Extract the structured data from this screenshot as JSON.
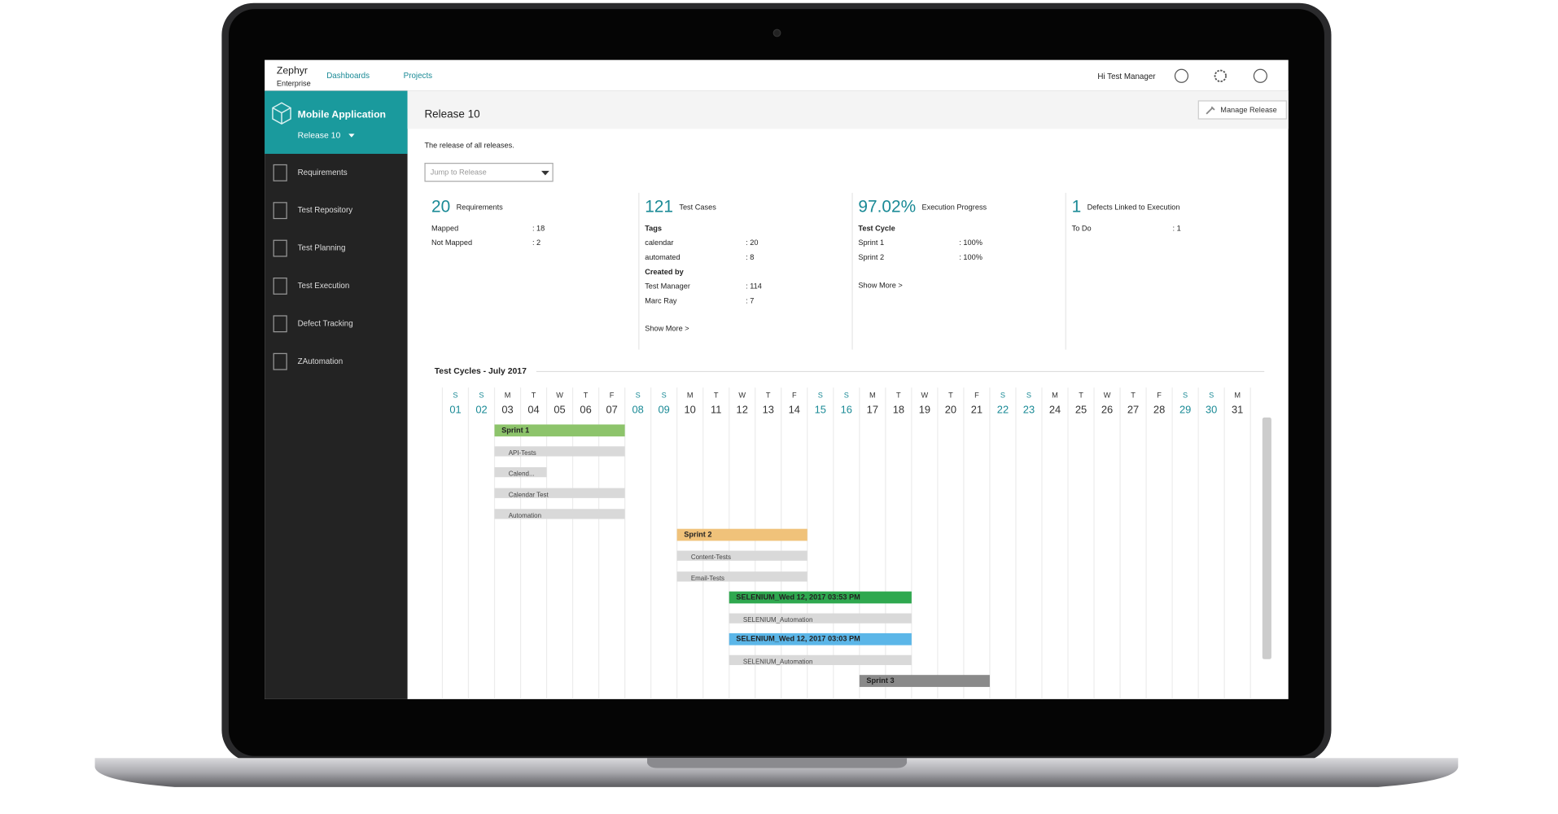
{
  "app": {
    "brand": "Zephyr",
    "brand_sub": "Enterprise",
    "nav": [
      "Dashboards",
      "Projects"
    ],
    "greeting": "Hi Test Manager"
  },
  "sidebar": {
    "project": "Mobile Application",
    "release": "Release 10",
    "items": [
      "Requirements",
      "Test Repository",
      "Test Planning",
      "Test Execution",
      "Defect Tracking",
      "ZAutomation"
    ]
  },
  "page": {
    "title": "Release 10",
    "action": "Manage Release",
    "description": "The release of all releases.",
    "jump_placeholder": "Jump to Release"
  },
  "cards": [
    {
      "value": "20",
      "label": "Requirements",
      "groups": [
        {
          "rows": [
            {
              "label": "Mapped",
              "value": ": 18"
            },
            {
              "label": "Not Mapped",
              "value": ": 2"
            }
          ]
        }
      ]
    },
    {
      "value": "121",
      "label": "Test Cases",
      "groups": [
        {
          "heading": "Tags",
          "rows": [
            {
              "label": "calendar",
              "value": ": 20"
            },
            {
              "label": "automated",
              "value": ": 8"
            }
          ]
        },
        {
          "heading": "Created by",
          "rows": [
            {
              "label": "Test Manager",
              "value": ": 114"
            },
            {
              "label": "Marc Ray",
              "value": ": 7"
            }
          ]
        }
      ],
      "link": "Show More >"
    },
    {
      "value": "97.02%",
      "label": "Execution Progress",
      "groups": [
        {
          "heading": "Test Cycle",
          "rows": [
            {
              "label": "Sprint 1",
              "value": ": 100%"
            },
            {
              "label": "Sprint 2",
              "value": ": 100%"
            }
          ]
        }
      ],
      "link": "Show More >"
    },
    {
      "value": "1",
      "label": "Defects Linked to Execution",
      "groups": [
        {
          "rows": [
            {
              "label": "To Do",
              "value": ": 1"
            }
          ]
        }
      ]
    }
  ],
  "gantt": {
    "title": "Test Cycles -  July 2017",
    "days": [
      {
        "dow": "S",
        "date": "01",
        "color": "#1a8a96"
      },
      {
        "dow": "S",
        "date": "02",
        "color": "#1a8a96"
      },
      {
        "dow": "M",
        "date": "03"
      },
      {
        "dow": "T",
        "date": "04"
      },
      {
        "dow": "W",
        "date": "05"
      },
      {
        "dow": "T",
        "date": "06"
      },
      {
        "dow": "F",
        "date": "07"
      },
      {
        "dow": "S",
        "date": "08",
        "color": "#1a8a96"
      },
      {
        "dow": "S",
        "date": "09",
        "color": "#1a8a96"
      },
      {
        "dow": "M",
        "date": "10"
      },
      {
        "dow": "T",
        "date": "11"
      },
      {
        "dow": "W",
        "date": "12"
      },
      {
        "dow": "T",
        "date": "13"
      },
      {
        "dow": "F",
        "date": "14"
      },
      {
        "dow": "S",
        "date": "15",
        "color": "#1a8a96"
      },
      {
        "dow": "S",
        "date": "16",
        "color": "#1a8a96"
      },
      {
        "dow": "M",
        "date": "17"
      },
      {
        "dow": "T",
        "date": "18"
      },
      {
        "dow": "W",
        "date": "19"
      },
      {
        "dow": "T",
        "date": "20"
      },
      {
        "dow": "F",
        "date": "21"
      },
      {
        "dow": "S",
        "date": "22",
        "color": "#1a8a96"
      },
      {
        "dow": "S",
        "date": "23",
        "color": "#1a8a96"
      },
      {
        "dow": "M",
        "date": "24"
      },
      {
        "dow": "T",
        "date": "25"
      },
      {
        "dow": "W",
        "date": "26"
      },
      {
        "dow": "T",
        "date": "27"
      },
      {
        "dow": "F",
        "date": "28"
      },
      {
        "dow": "S",
        "date": "29",
        "color": "#1a8a96"
      },
      {
        "dow": "S",
        "date": "30",
        "color": "#1a8a96"
      },
      {
        "dow": "M",
        "date": "31"
      }
    ],
    "bars": [
      {
        "label": "Sprint 1",
        "start": 3,
        "end": 7,
        "color": "#8dc46b",
        "level": 1
      },
      {
        "label": "API-Tests",
        "start": 3,
        "end": 7,
        "color": "#d9d9d9",
        "level": 2
      },
      {
        "label": "Calend...",
        "start": 3,
        "end": 4,
        "color": "#d9d9d9",
        "level": 2
      },
      {
        "label": "Calendar Test",
        "start": 3,
        "end": 7,
        "color": "#d9d9d9",
        "level": 2
      },
      {
        "label": "Automation",
        "start": 3,
        "end": 7,
        "color": "#d9d9d9",
        "level": 2
      },
      {
        "label": "Sprint 2",
        "start": 10,
        "end": 14,
        "color": "#f0c27a",
        "level": 1
      },
      {
        "label": "Content-Tests",
        "start": 10,
        "end": 14,
        "color": "#d9d9d9",
        "level": 2
      },
      {
        "label": "Email-Tests",
        "start": 10,
        "end": 14,
        "color": "#d9d9d9",
        "level": 2
      },
      {
        "label": "SELENIUM_Wed 12, 2017 03:53 PM",
        "start": 12,
        "end": 18,
        "color": "#2fa84f",
        "level": 1
      },
      {
        "label": "SELENIUM_Automation",
        "start": 12,
        "end": 18,
        "color": "#d9d9d9",
        "level": 2
      },
      {
        "label": "SELENIUM_Wed 12, 2017 03:03 PM",
        "start": 12,
        "end": 18,
        "color": "#5bb6e8",
        "level": 1
      },
      {
        "label": "SELENIUM_Automation",
        "start": 12,
        "end": 18,
        "color": "#d9d9d9",
        "level": 2
      },
      {
        "label": "Sprint 3",
        "start": 17,
        "end": 21,
        "color": "#8a8a8a",
        "level": 1
      }
    ]
  }
}
